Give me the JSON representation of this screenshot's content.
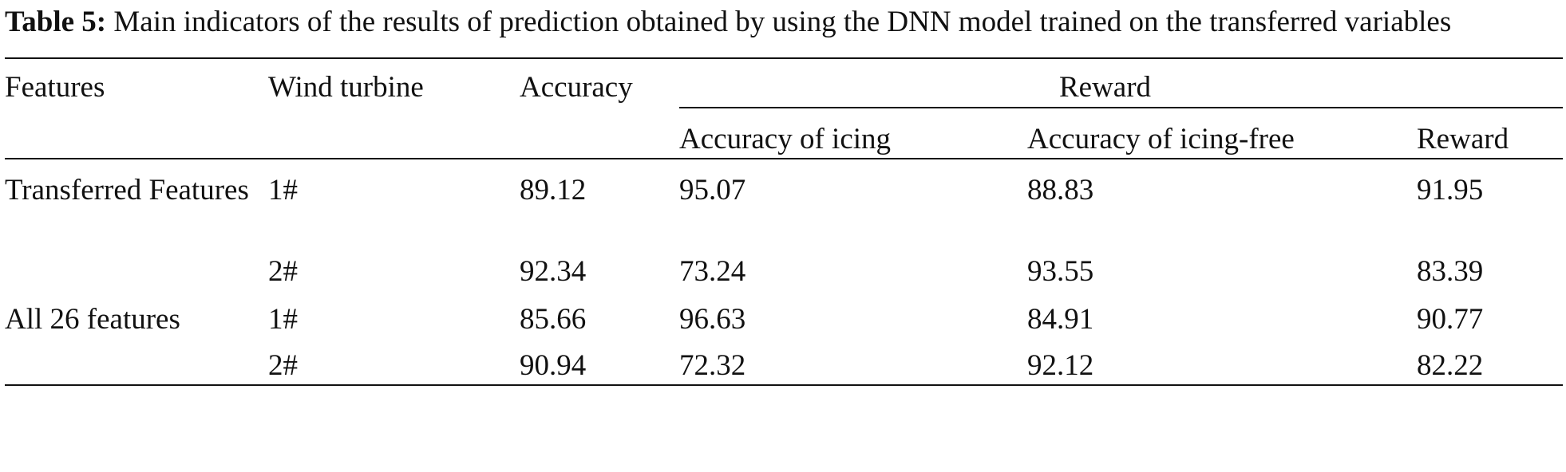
{
  "caption": {
    "label": "Table 5:",
    "text": "Main indicators of the results of prediction obtained by using the DNN model trained on the transferred variables"
  },
  "table": {
    "headers": {
      "features": "Features",
      "wind_turbine": "Wind turbine",
      "accuracy": "Accuracy",
      "reward_group": "Reward",
      "accuracy_icing": "Accuracy of icing",
      "accuracy_icing_free": "Accuracy of icing-free",
      "reward": "Reward"
    },
    "rows": [
      {
        "features": "Transferred Features",
        "turbine": "1#",
        "accuracy": "89.12",
        "acc_icing": "95.07",
        "acc_icing_free": "88.83",
        "reward": "91.95"
      },
      {
        "features": "",
        "turbine": "2#",
        "accuracy": "92.34",
        "acc_icing": "73.24",
        "acc_icing_free": "93.55",
        "reward": "83.39"
      },
      {
        "features": "All 26 features",
        "turbine": "1#",
        "accuracy": "85.66",
        "acc_icing": "96.63",
        "acc_icing_free": "84.91",
        "reward": "90.77"
      },
      {
        "features": "",
        "turbine": "2#",
        "accuracy": "90.94",
        "acc_icing": "72.32",
        "acc_icing_free": "92.12",
        "reward": "82.22"
      }
    ]
  }
}
